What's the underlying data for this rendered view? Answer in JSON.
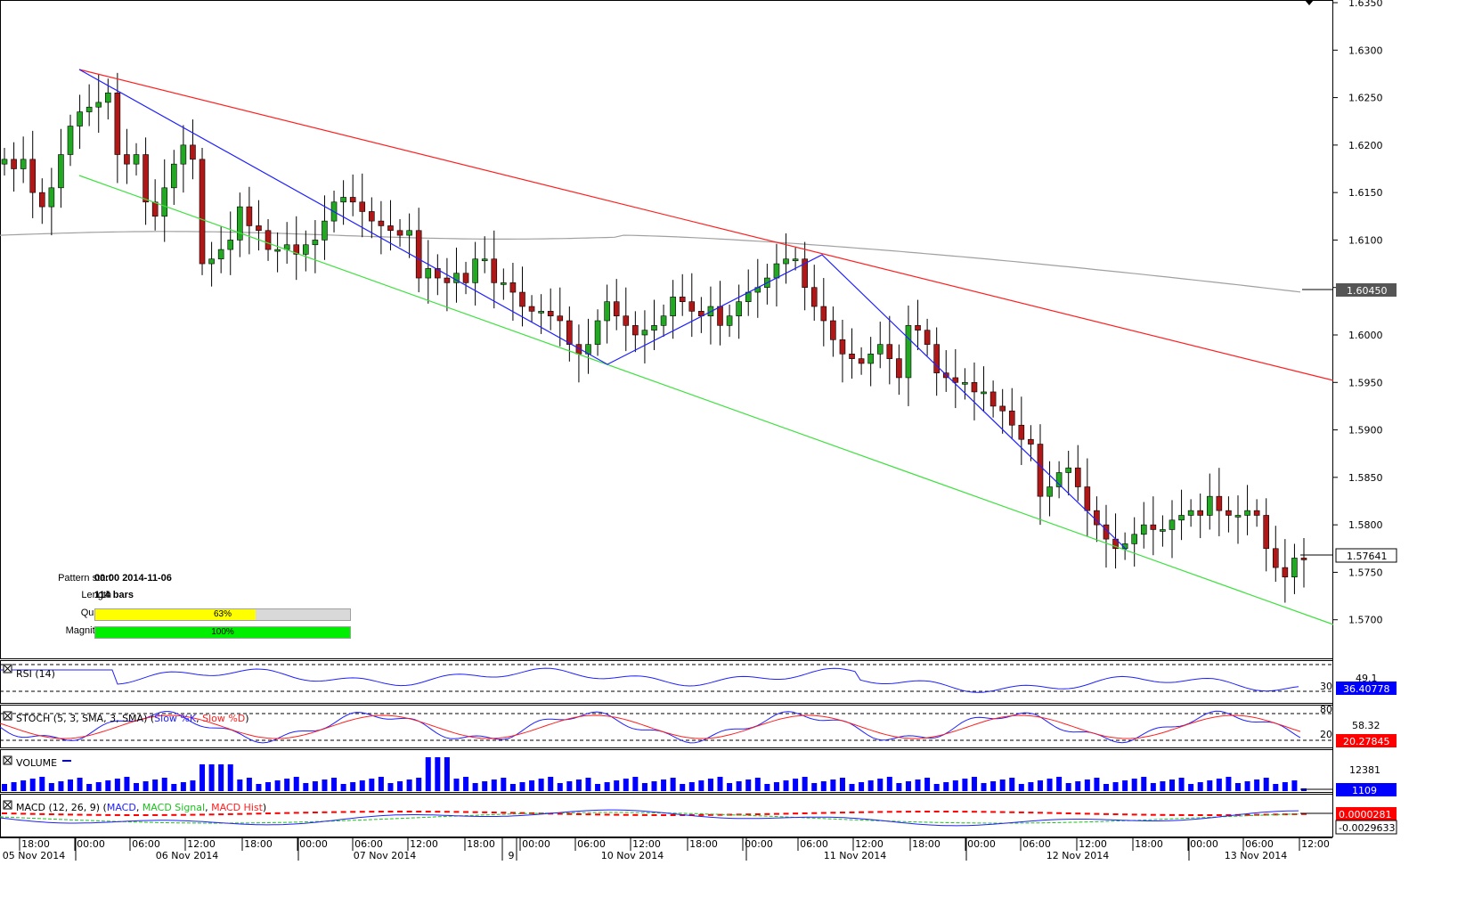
{
  "chart_data": {
    "type": "candlestick",
    "symbol_hint": "",
    "price_axis": {
      "ticks": [
        "1.6350",
        "1.6300",
        "1.6250",
        "1.6200",
        "1.6150",
        "1.6100",
        "1.6050",
        "1.6000",
        "1.5950",
        "1.5900",
        "1.5850",
        "1.5800",
        "1.5750",
        "1.5700"
      ],
      "range": [
        1.5665,
        1.635
      ]
    },
    "time_axis": {
      "hour_labels": [
        "18:00",
        "00:00",
        "06:00",
        "12:00",
        "18:00",
        "00:00",
        "06:00",
        "12:00",
        "18:00",
        "00:00",
        "06:00",
        "12:00",
        "18:00",
        "00:00",
        "06:00",
        "12:00",
        "18:00",
        "00:00",
        "06:00",
        "12:00",
        "18:00",
        "00:00",
        "06:00",
        "12:00"
      ],
      "date_labels": [
        "05 Nov 2014",
        "06 Nov 2014",
        "07 Nov 2014",
        "9",
        "10 Nov 2014",
        "11 Nov 2014",
        "12 Nov 2014",
        "13 Nov 2014"
      ]
    },
    "closes": [
      1.6185,
      1.6175,
      1.6185,
      1.615,
      1.6135,
      1.6155,
      1.619,
      1.622,
      1.6235,
      1.624,
      1.6245,
      1.6255,
      1.619,
      1.618,
      1.619,
      1.614,
      1.6125,
      1.6155,
      1.618,
      1.62,
      1.6185,
      1.6075,
      1.608,
      1.609,
      1.61,
      1.6135,
      1.6115,
      1.611,
      1.609,
      1.609,
      1.6095,
      1.6085,
      1.6095,
      1.61,
      1.612,
      1.614,
      1.6145,
      1.614,
      1.613,
      1.612,
      1.6115,
      1.611,
      1.6105,
      1.611,
      1.606,
      1.607,
      1.606,
      1.6055,
      1.6065,
      1.6055,
      1.608,
      1.608,
      1.6055,
      1.6055,
      1.6045,
      1.603,
      1.6025,
      1.6025,
      1.602,
      1.6015,
      1.599,
      1.598,
      1.599,
      1.6015,
      1.6035,
      1.602,
      1.601,
      1.6,
      1.6005,
      1.601,
      1.602,
      1.604,
      1.6035,
      1.6025,
      1.602,
      1.603,
      1.601,
      1.602,
      1.6035,
      1.6045,
      1.605,
      1.606,
      1.6075,
      1.608,
      1.608,
      1.605,
      1.603,
      1.6015,
      1.5995,
      1.598,
      1.5975,
      1.597,
      1.598,
      1.599,
      1.5975,
      1.5955,
      1.601,
      1.6005,
      1.599,
      1.596,
      1.5955,
      1.595,
      1.595,
      1.594,
      1.594,
      1.5925,
      1.592,
      1.5905,
      1.589,
      1.5885,
      1.583,
      1.584,
      1.5855,
      1.586,
      1.584,
      1.5815,
      1.58,
      1.5785,
      1.5775,
      1.578,
      1.579,
      1.58,
      1.5795,
      1.5795,
      1.5805,
      1.581,
      1.5815,
      1.581,
      1.583,
      1.5815,
      1.581,
      1.581,
      1.5815,
      1.581,
      1.5775,
      1.5755,
      1.5745,
      1.5765,
      1.5764
    ],
    "overlays": {
      "upper_trendline": "red",
      "lower_trendline": "green",
      "zigzag": "blue",
      "moving_average": "gray"
    },
    "current_price": "1.57641",
    "ma_value": "1.60450",
    "pattern_info": {
      "pattern_start_label": "Pattern start",
      "pattern_start_value": "00:00 2014-11-06",
      "length_label": "Length",
      "length_value": "114 bars",
      "quality_label": "Quality",
      "quality_value": "63%",
      "quality_fraction": 0.63,
      "magnitude_label": "Magnitude",
      "magnitude_value": "100%",
      "magnitude_fraction": 1.0
    },
    "rsi": {
      "label": "RSI (14)",
      "level_top": "49.1",
      "level_30": "30",
      "value": "36.40778"
    },
    "stoch": {
      "label_prefix": "STOCH (5, 3, SMA, 3, SMA) (",
      "slow_k": "Slow %K",
      "slow_d": "Slow %D",
      "label_suffix": ")",
      "level_80": "80",
      "level_20": "20",
      "value_k": "58.32",
      "value_d": "20.27845"
    },
    "volume": {
      "label": "VOLUME",
      "max_label": "12381",
      "value": "1109"
    },
    "macd": {
      "label_prefix": "MACD (12, 26, 9) (",
      "macd": "MACD",
      "signal": "MACD Signal",
      "hist": "MACD Hist",
      "label_suffix": ")",
      "value_macd": "0.0000281",
      "value_signal": "-0.0029633"
    },
    "colors": {
      "bull": "#22a822",
      "bear": "#b01818",
      "upper_line": "#ff2020",
      "lower_line": "#40e040",
      "zigzag": "#2020ff",
      "ma": "#a0a0a0",
      "quality_bar": "#ffff00",
      "magnitude_bar": "#00ee00",
      "value_box": "#0000ff",
      "macd_box": "#ff0000"
    }
  }
}
